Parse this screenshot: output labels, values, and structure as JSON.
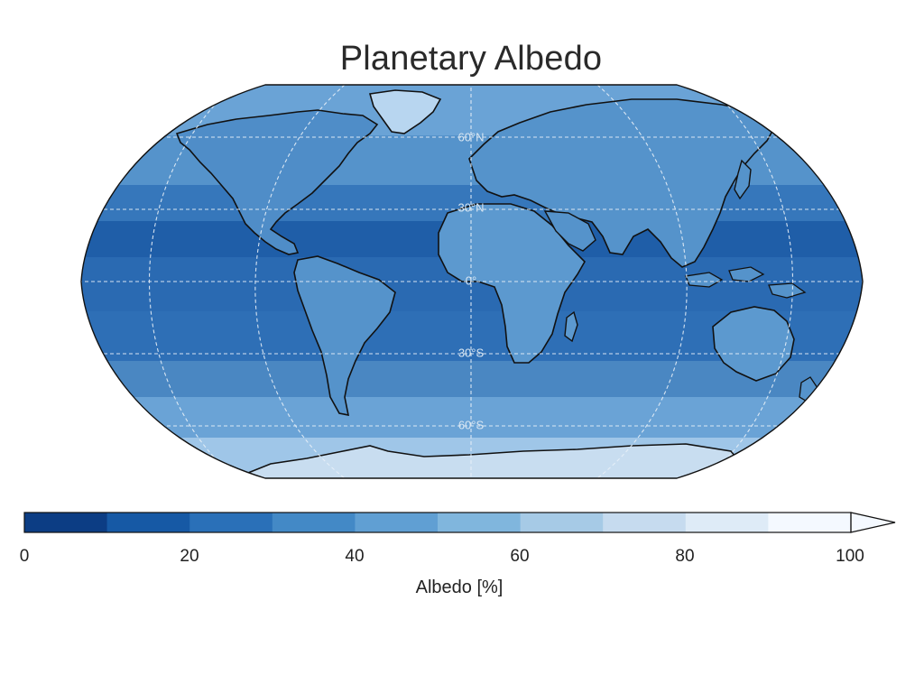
{
  "title": "Planetary Albedo",
  "lat_labels": [
    "60°N",
    "30°N",
    "0°",
    "30°S",
    "60°S"
  ],
  "colorbar": {
    "label": "Albedo [%]",
    "ticks": [
      "0",
      "20",
      "40",
      "60",
      "80",
      "100"
    ],
    "min": 0,
    "max": 100,
    "extend": "max",
    "colors": [
      "#0c3d84",
      "#1659a5",
      "#2a70b8",
      "#4389c6",
      "#609fd3",
      "#80b6dd",
      "#a6cae6",
      "#c6dbef",
      "#deebf7",
      "#f4f9ff"
    ]
  },
  "map": {
    "projection": "Robinson",
    "colormap": "Blues_r",
    "background_color": "#4a87c2",
    "gridlines": "dashed"
  }
}
